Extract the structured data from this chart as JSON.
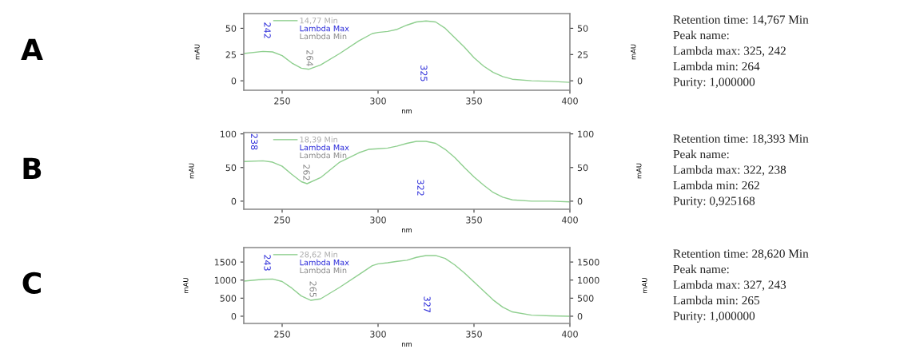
{
  "chart_data": [
    {
      "type": "other",
      "annotations": [
        "A"
      ]
    },
    {
      "type": "line",
      "xlabel": "nm",
      "ylabel": "mAU",
      "y2label": "mAU",
      "xlim": [
        230,
        400
      ],
      "xticks": [
        250,
        300,
        350,
        400
      ],
      "ylim": [
        -9,
        64
      ],
      "yticks": [
        0,
        25,
        50
      ],
      "y2lim": [
        -9,
        64
      ],
      "y2ticks": [
        0,
        25,
        50
      ],
      "legend": "top left",
      "grid": false,
      "x": [
        230,
        240,
        245,
        250,
        255,
        260,
        264,
        270,
        280,
        290,
        297,
        300,
        305,
        310,
        315,
        320,
        325,
        330,
        335,
        340,
        345,
        350,
        355,
        360,
        365,
        370,
        380,
        390,
        400
      ],
      "series": [
        {
          "name": "14,77 Min",
          "color": "#8fcf8f",
          "values": [
            26,
            28,
            27.5,
            24,
            17,
            12,
            11,
            15,
            26,
            38,
            45,
            46,
            47,
            49,
            53,
            56,
            57,
            56,
            50,
            41,
            32,
            22,
            14,
            8,
            4,
            1.5,
            0,
            -0.5,
            -1.5
          ]
        }
      ],
      "annotations": [
        "Lambda Max",
        "Lambda Min",
        "325",
        "242",
        "264"
      ]
    },
    {
      "type": "other",
      "annotations": [
        "Retention time: 14,767 Min",
        "Peak name:",
        "Lambda max: 325, 242",
        "Lambda min: 264",
        "Purity: 1,000000"
      ]
    },
    {
      "type": "other",
      "annotations": [
        "B"
      ]
    },
    {
      "type": "line",
      "xlabel": "nm",
      "ylabel": "mAU",
      "y2label": "mAU",
      "xlim": [
        230,
        400
      ],
      "xticks": [
        250,
        300,
        350,
        400
      ],
      "ylim": [
        -12,
        102
      ],
      "yticks": [
        0,
        50,
        100
      ],
      "y2lim": [
        -12,
        102
      ],
      "y2ticks": [
        0,
        50,
        100
      ],
      "legend": "top left",
      "grid": false,
      "x": [
        230,
        240,
        245,
        250,
        255,
        260,
        263,
        270,
        280,
        290,
        295,
        300,
        305,
        310,
        315,
        320,
        325,
        330,
        335,
        340,
        345,
        350,
        355,
        360,
        365,
        370,
        380,
        390,
        400
      ],
      "series": [
        {
          "name": "18,39 Min",
          "color": "#8fcf8f",
          "values": [
            59,
            60,
            58,
            52,
            40,
            29,
            26,
            35,
            58,
            72,
            77,
            78,
            79,
            82,
            86,
            89,
            89,
            86,
            77,
            65,
            50,
            36,
            24,
            13,
            6,
            2,
            0,
            0,
            -1
          ]
        }
      ],
      "annotations": [
        "Lambda Max",
        "Lambda Min",
        "322",
        "238",
        "262"
      ]
    },
    {
      "type": "other",
      "annotations": [
        "Retention time: 18,393 Min",
        "Peak name:",
        "Lambda max: 322, 238",
        "Lambda min: 262",
        "Purity: 0,925168"
      ]
    },
    {
      "type": "other",
      "annotations": [
        "C"
      ]
    },
    {
      "type": "line",
      "xlabel": "nm",
      "ylabel": "mAU",
      "y2label": "mAU",
      "xlim": [
        230,
        400
      ],
      "xticks": [
        250,
        300,
        350,
        400
      ],
      "ylim": [
        -200,
        1900
      ],
      "yticks": [
        0,
        500,
        1000,
        1500
      ],
      "y2lim": [
        -200,
        1900
      ],
      "y2ticks": [
        0,
        500,
        1000,
        1500
      ],
      "legend": "top left",
      "grid": false,
      "x": [
        230,
        240,
        245,
        250,
        255,
        260,
        265,
        270,
        280,
        290,
        297,
        300,
        305,
        310,
        315,
        320,
        325,
        330,
        335,
        340,
        345,
        350,
        355,
        360,
        365,
        370,
        380,
        390,
        400
      ],
      "series": [
        {
          "name": "28,62 Min",
          "color": "#8fcf8f",
          "values": [
            970,
            1020,
            1030,
            960,
            780,
            560,
            440,
            480,
            800,
            1150,
            1400,
            1450,
            1480,
            1520,
            1550,
            1630,
            1680,
            1680,
            1600,
            1420,
            1200,
            950,
            700,
            450,
            250,
            120,
            30,
            10,
            0
          ]
        }
      ],
      "annotations": [
        "Lambda Max",
        "Lambda Min",
        "327",
        "243",
        "265"
      ]
    },
    {
      "type": "other",
      "annotations": [
        "Retention time: 28,620 Min",
        "Peak name:",
        "Lambda max: 327, 243",
        "Lambda min: 265",
        "Purity: 1,000000"
      ]
    }
  ]
}
